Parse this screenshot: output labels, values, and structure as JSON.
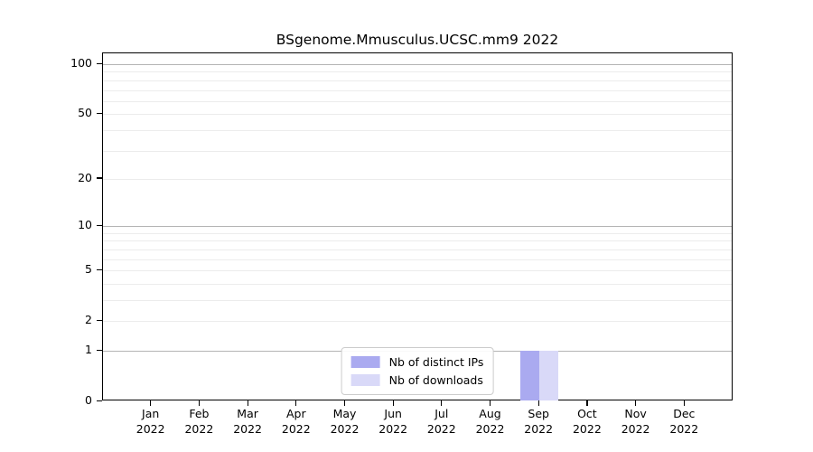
{
  "chart_data": {
    "type": "bar",
    "title": "BSgenome.Mmusculus.UCSC.mm9 2022",
    "categories": [
      "Jan",
      "Feb",
      "Mar",
      "Apr",
      "May",
      "Jun",
      "Jul",
      "Aug",
      "Sep",
      "Oct",
      "Nov",
      "Dec"
    ],
    "year": "2022",
    "series": [
      {
        "name": "Nb of distinct IPs",
        "color": "#aaaaf0",
        "values": [
          0,
          0,
          0,
          0,
          0,
          0,
          0,
          0,
          1,
          0,
          0,
          0
        ]
      },
      {
        "name": "Nb of downloads",
        "color": "#d9d9f8",
        "values": [
          0,
          0,
          0,
          0,
          0,
          0,
          0,
          0,
          1,
          0,
          0,
          0
        ]
      }
    ],
    "y_axis": {
      "scale": "log10(1+y)",
      "tick_values": [
        0,
        1,
        2,
        5,
        10,
        20,
        50,
        100
      ],
      "tick_labels": [
        "0",
        "1",
        "2",
        "5",
        "10",
        "20",
        "50",
        "100"
      ],
      "major_gridlines": [
        1,
        10,
        100
      ],
      "minor_gridlines": [
        2,
        3,
        4,
        5,
        6,
        7,
        8,
        9,
        20,
        30,
        40,
        50,
        60,
        70,
        80,
        90
      ],
      "ylim": [
        0,
        117
      ]
    },
    "x_axis": {
      "label_format": "month-over-year"
    },
    "legend": {
      "position": "inside-bottom-center"
    },
    "grid": true,
    "colors": {
      "major_grid": "#b4b4b4",
      "minor_grid": "#ececec",
      "axis": "#000000",
      "background": "#ffffff"
    }
  }
}
